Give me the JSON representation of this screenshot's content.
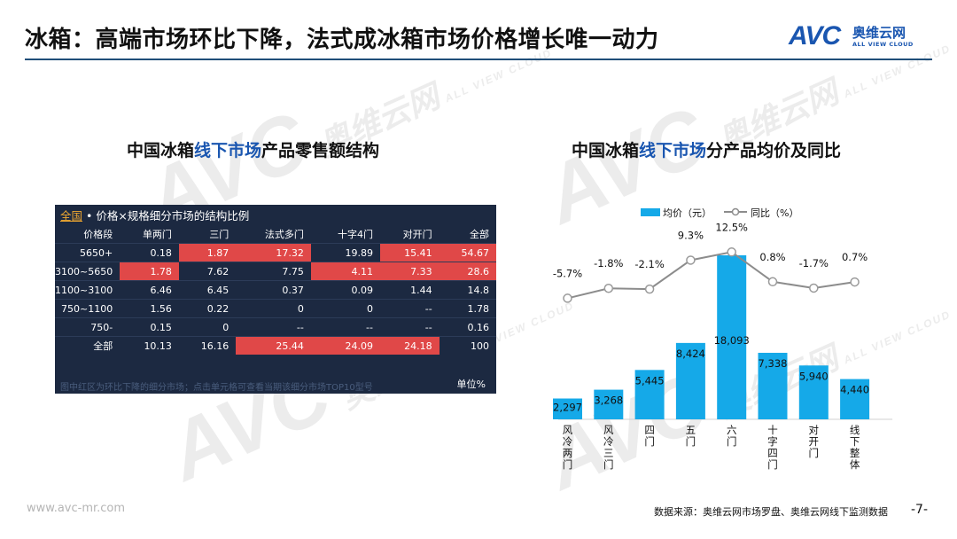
{
  "header": {
    "title": "冰箱：高端市场环比下降，法式成冰箱市场价格增长唯一动力",
    "logo_mark": "AVC",
    "logo_cn": "奥维云网",
    "logo_en": "ALL VIEW CLOUD"
  },
  "watermark": {
    "mark": "AVC",
    "cn": "奥维云网",
    "en": "ALL VIEW CLOUD"
  },
  "left_section": {
    "title_prefix": "中国冰箱",
    "title_highlight": "线下市场",
    "title_suffix": "产品零售额结构",
    "table_title_accent": "全国",
    "table_title_rest": " • 价格×规格细分市场的结构比例",
    "columns": [
      "价格段",
      "单两门",
      "三门",
      "法式多门",
      "十字4门",
      "对开门",
      "全部"
    ],
    "rows": [
      {
        "cells": [
          "5650+",
          "0.18",
          "1.87",
          "17.32",
          "19.89",
          "15.41",
          "54.67"
        ],
        "red": [
          2,
          3,
          5,
          6
        ]
      },
      {
        "cells": [
          "3100~5650",
          "1.78",
          "7.62",
          "7.75",
          "4.11",
          "7.33",
          "28.6"
        ],
        "red": [
          1,
          4,
          5,
          6
        ]
      },
      {
        "cells": [
          "1100~3100",
          "6.46",
          "6.45",
          "0.37",
          "0.09",
          "1.44",
          "14.8"
        ],
        "red": []
      },
      {
        "cells": [
          "750~1100",
          "1.56",
          "0.22",
          "0",
          "0",
          "--",
          "1.78"
        ],
        "red": []
      },
      {
        "cells": [
          "750-",
          "0.15",
          "0",
          "--",
          "--",
          "--",
          "0.16"
        ],
        "red": []
      },
      {
        "cells": [
          "全部",
          "10.13",
          "16.16",
          "25.44",
          "24.09",
          "24.18",
          "100"
        ],
        "red": [
          3,
          4,
          5
        ]
      }
    ],
    "note": "图中红区为环比下降的细分市场；点击单元格可查看当期该细分市场TOP10型号",
    "unit": "单位%",
    "colors": {
      "bg": "#1c2941",
      "red": "#e04848",
      "accent": "#f0a830"
    }
  },
  "chart_data": {
    "type": "bar",
    "title_prefix": "中国冰箱",
    "title_highlight": "线下市场",
    "title_suffix": "分产品均价及同比",
    "categories": [
      "风冷两门",
      "风冷三门",
      "四门",
      "五门",
      "六门",
      "十字四门",
      "对开门",
      "线下整体"
    ],
    "series": [
      {
        "name": "均价（元）",
        "type": "bar",
        "values": [
          2297,
          3268,
          5445,
          8424,
          18093,
          7338,
          5940,
          4440
        ],
        "labels": [
          "2,297",
          "3,268",
          "5,445",
          "8,424",
          "18,093",
          "7,338",
          "5,940",
          "4,440"
        ],
        "color": "#15a9e8"
      },
      {
        "name": "同比（%）",
        "type": "line",
        "values": [
          -5.7,
          -1.8,
          -2.1,
          9.3,
          12.5,
          0.8,
          -1.7,
          0.7
        ],
        "labels": [
          "-5.7%",
          "-1.8%",
          "-2.1%",
          "9.3%",
          "12.5%",
          "0.8%",
          "-1.7%",
          "0.7%"
        ],
        "color": "#8c8c8c"
      }
    ],
    "ylim_bar": [
      0,
      18093
    ],
    "ylim_line": [
      -8,
      14
    ],
    "legend_position": "top-center"
  },
  "footer": {
    "website": "www.avc-mr.com",
    "source": "数据来源：奥维云网市场罗盘、奥维云网线下监测数据",
    "page": "-7-"
  }
}
